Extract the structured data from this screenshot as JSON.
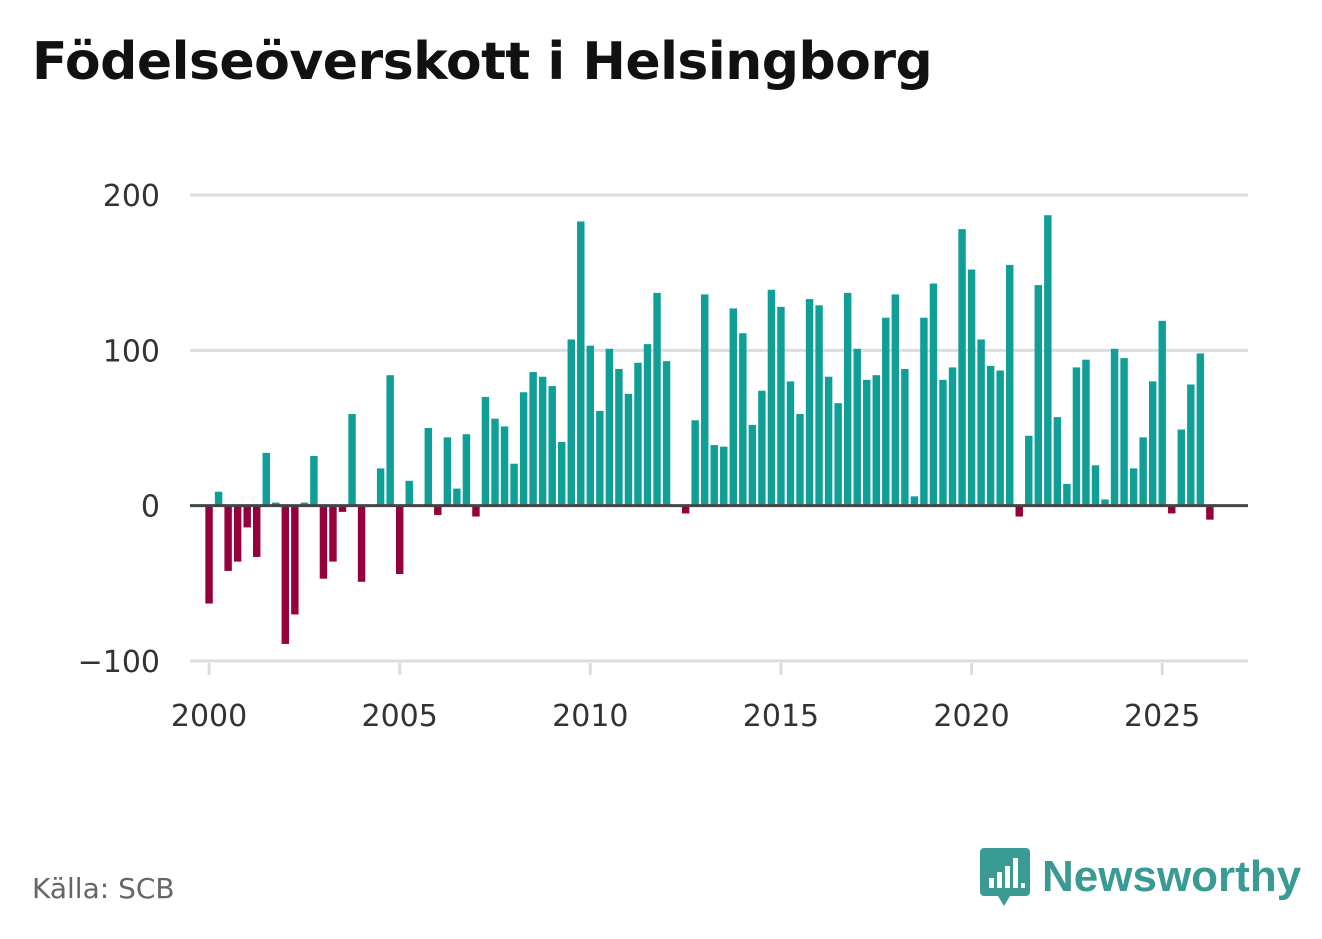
{
  "chart_data": {
    "type": "bar",
    "title": "Födelseöverskott i Helsingborg",
    "xlabel": "",
    "ylabel": "",
    "ylim": [
      -100,
      200
    ],
    "y_ticks": [
      -100,
      0,
      100,
      200
    ],
    "y_tick_labels": [
      "−100",
      "0",
      "100",
      "200"
    ],
    "x_range": [
      1999.5,
      2027.25
    ],
    "x_ticks": [
      2000,
      2005,
      2010,
      2015,
      2020,
      2025
    ],
    "x_tick_labels": [
      "2000",
      "2005",
      "2010",
      "2015",
      "2020",
      "2025"
    ],
    "grid": true,
    "frequency": "quarterly",
    "start": {
      "year": 2000,
      "quarter": 1
    },
    "colors": {
      "positive": "#0f9f97",
      "negative": "#96003d",
      "grid": "#dddddd",
      "zero_line": "#444444"
    },
    "values": [
      -63,
      9,
      -42,
      -36,
      -14,
      -33,
      34,
      2,
      -89,
      -70,
      2,
      32,
      -47,
      -36,
      -4,
      59,
      -49,
      0,
      24,
      84,
      -44,
      16,
      0,
      50,
      -6,
      44,
      11,
      46,
      -7,
      70,
      56,
      51,
      27,
      73,
      86,
      83,
      77,
      41,
      107,
      183,
      103,
      61,
      101,
      88,
      72,
      92,
      104,
      137,
      93,
      0,
      -5,
      55,
      136,
      39,
      38,
      127,
      111,
      52,
      74,
      139,
      128,
      80,
      59,
      133,
      129,
      83,
      66,
      137,
      101,
      81,
      84,
      121,
      136,
      88,
      6,
      121,
      143,
      81,
      89,
      178,
      152,
      107,
      90,
      87,
      155,
      -7,
      45,
      142,
      187,
      57,
      14,
      89,
      94,
      26,
      4,
      101,
      95,
      24,
      44,
      80,
      119,
      -5,
      49,
      78,
      98,
      -9
    ]
  },
  "source": "Källa: SCB",
  "brand": {
    "name": "Newsworthy",
    "icon": "newsworthy-logo-icon",
    "color": "#3a9a94"
  }
}
